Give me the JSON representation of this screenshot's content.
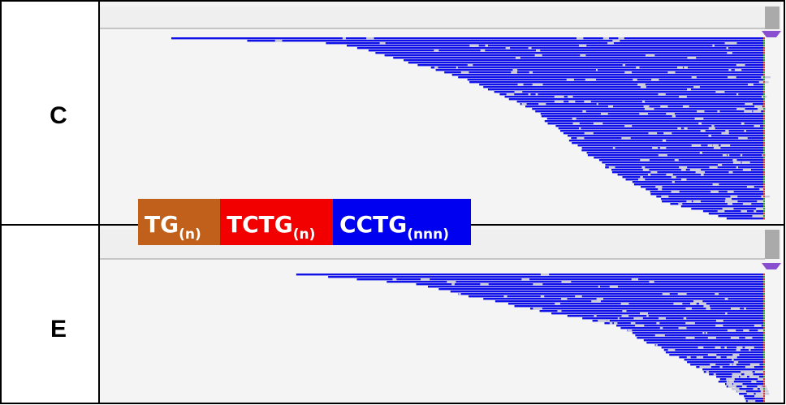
{
  "panels": [
    {
      "label": "C"
    },
    {
      "label": "E"
    }
  ],
  "legend": [
    {
      "text": "TG",
      "subscript": "(n)",
      "color": "#c0601a"
    },
    {
      "text": "TCTG",
      "subscript": "(n)",
      "color": "#f20000"
    },
    {
      "text": "CCTG",
      "subscript": "(nnn)",
      "color": "#0000f0"
    }
  ]
}
